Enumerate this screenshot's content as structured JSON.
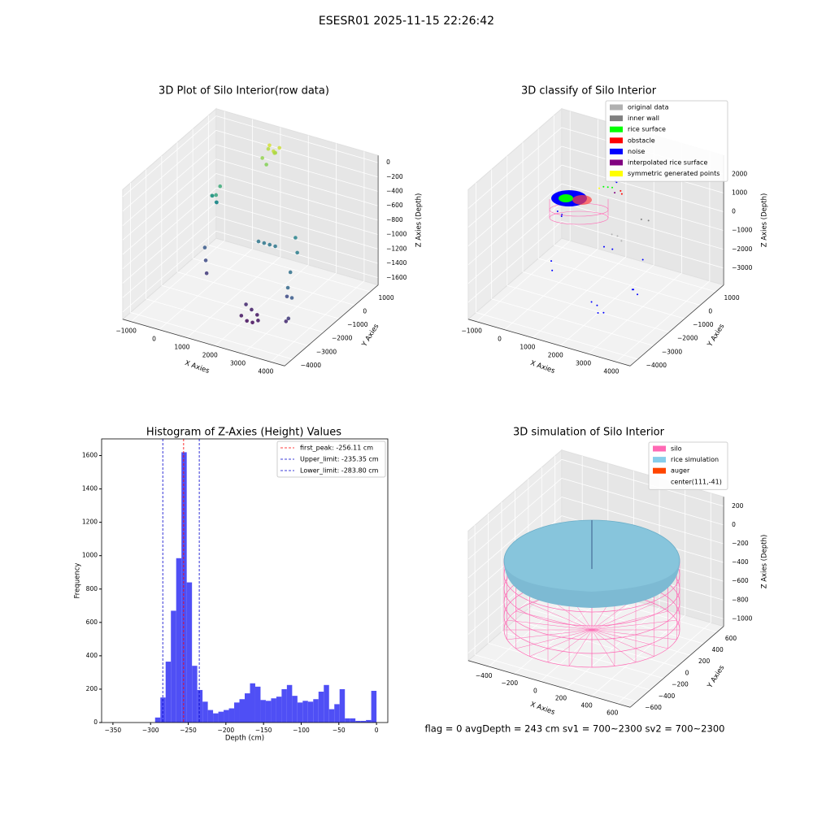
{
  "suptitle": "ESESR01 2025-11-15 22:26:42",
  "footer": "flag = 0     avgDepth = 243 cm  sv1 = 700~2300  sv2 = 700~2300",
  "chart_data": [
    {
      "type": "scatter3d",
      "title": "3D Plot of Silo Interior(row data)",
      "xlabel": "X Axies",
      "ylabel": "Y Axies",
      "zlabel": "Z Axies (Depth)",
      "xlim": [
        -1300,
        4500
      ],
      "ylim": [
        -4500,
        1500
      ],
      "zlim": [
        -1700,
        100
      ],
      "xticks": [
        {
          "value": -1000,
          "label": "−1000"
        },
        0,
        1000,
        2000,
        3000,
        4000
      ],
      "yticks": [
        {
          "value": -4000,
          "label": "−4000"
        },
        {
          "value": -3000,
          "label": "−3000"
        },
        {
          "value": -2000,
          "label": "−2000"
        },
        {
          "value": -1000,
          "label": "−1000"
        },
        0,
        1000
      ],
      "zticks": [
        {
          "value": -1600,
          "label": "−1600"
        },
        {
          "value": -1400,
          "label": "−1400"
        },
        {
          "value": -1200,
          "label": "−1200"
        },
        {
          "value": -1000,
          "label": "−1000"
        },
        {
          "value": -800,
          "label": "−800"
        },
        {
          "value": -600,
          "label": "−600"
        },
        {
          "value": -400,
          "label": "−400"
        },
        {
          "value": -200,
          "label": "−200"
        },
        0
      ],
      "colormap": "viridis",
      "points": [
        [
          1000,
          800,
          -20
        ],
        [
          1200,
          700,
          -60
        ],
        [
          900,
          900,
          -100
        ],
        [
          1100,
          1000,
          -150
        ],
        [
          1300,
          900,
          -40
        ],
        [
          800,
          700,
          -200
        ],
        [
          1000,
          600,
          -250
        ],
        [
          1150,
          850,
          -120
        ],
        [
          -500,
          -200,
          -700
        ],
        [
          -400,
          -100,
          -800
        ],
        [
          -600,
          0,
          -750
        ],
        [
          -300,
          -300,
          -650
        ],
        [
          -500,
          100,
          -850
        ],
        [
          -350,
          50,
          -600
        ],
        [
          1500,
          -800,
          -1000
        ],
        [
          1700,
          -800,
          -1000
        ],
        [
          1900,
          -800,
          -1000
        ],
        [
          2100,
          -800,
          -1000
        ],
        [
          3500,
          -2500,
          -1100
        ],
        [
          3700,
          -2600,
          -1200
        ],
        [
          3300,
          -2200,
          -1300
        ],
        [
          3800,
          -3000,
          -1400
        ],
        [
          3600,
          -2800,
          -1500
        ],
        [
          3200,
          -1800,
          -1050
        ],
        [
          2000,
          -2500,
          -1500
        ],
        [
          2200,
          -2500,
          -1550
        ],
        [
          2400,
          -2500,
          -1600
        ],
        [
          2000,
          -2800,
          -1600
        ],
        [
          2200,
          -2800,
          -1650
        ],
        [
          2400,
          -2800,
          -1650
        ],
        [
          2600,
          -2800,
          -1600
        ],
        [
          0,
          -1500,
          -1300
        ],
        [
          200,
          -1800,
          -1400
        ],
        [
          -200,
          -1200,
          -1200
        ],
        [
          2600,
          -400,
          -900
        ],
        [
          3000,
          -1000,
          -950
        ]
      ]
    },
    {
      "type": "scatter3d",
      "title": "3D classify of Silo Interior",
      "xlabel": "X Axies",
      "ylabel": "Y Axies",
      "zlabel": "Z Axies (Depth)",
      "xlim": [
        -1300,
        4500
      ],
      "ylim": [
        -4500,
        1500
      ],
      "zlim": [
        -3900,
        3000
      ],
      "xticks": [
        {
          "value": -1000,
          "label": "−1000"
        },
        0,
        1000,
        2000,
        3000,
        4000
      ],
      "yticks": [
        {
          "value": -4000,
          "label": "−4000"
        },
        {
          "value": -3000,
          "label": "−3000"
        },
        {
          "value": -2000,
          "label": "−2000"
        },
        {
          "value": -1000,
          "label": "−1000"
        },
        0,
        1000
      ],
      "zticks": [
        {
          "value": -3000,
          "label": "−3000"
        },
        {
          "value": -2000,
          "label": "−2000"
        },
        {
          "value": -1000,
          "label": "−1000"
        },
        0,
        1000,
        2000
      ],
      "series": [
        {
          "name": "original data",
          "color": "#b0b0b0",
          "points": [
            [
              1500,
              -300,
              -1200
            ],
            [
              1700,
              -300,
              -1200
            ],
            [
              1900,
              -400,
              -1300
            ]
          ]
        },
        {
          "name": "inner wall",
          "color": "#808080",
          "points": [
            [
              2000,
              700,
              -900
            ],
            [
              2200,
              800,
              -950
            ]
          ]
        },
        {
          "name": "rice surface",
          "color": "#00ff00",
          "points": [
            [
              800,
              700,
              300
            ],
            [
              900,
              800,
              250
            ],
            [
              700,
              600,
              350
            ]
          ]
        },
        {
          "name": "obstacle",
          "color": "#ff0000",
          "points": [
            [
              1200,
              800,
              200
            ],
            [
              1300,
              700,
              150
            ]
          ]
        },
        {
          "name": "noise",
          "color": "#0000ff",
          "points": [
            [
              1000,
              900,
              500
            ],
            [
              900,
              1000,
              450
            ],
            [
              -500,
              -200,
              -900
            ],
            [
              -400,
              -100,
              -1100
            ],
            [
              -300,
              -300,
              -1000
            ],
            [
              1500,
              -800,
              -1500
            ],
            [
              1800,
              -800,
              -1500
            ],
            [
              3500,
              -2500,
              -1700
            ],
            [
              3700,
              -2600,
              -1800
            ],
            [
              3300,
              -2200,
              -2000
            ],
            [
              2000,
              -2500,
              -3000
            ],
            [
              2200,
              -2500,
              -3100
            ],
            [
              2400,
              -2800,
              -3200
            ],
            [
              2600,
              -2800,
              -3100
            ],
            [
              0,
              -1500,
              -2400
            ],
            [
              200,
              -1800,
              -2600
            ],
            [
              3000,
              -1000,
              -1400
            ]
          ]
        },
        {
          "name": "interpolated rice surface",
          "color": "#800080",
          "points": [
            [
              1100,
              600,
              200
            ]
          ]
        },
        {
          "name": "symmetric generated points",
          "color": "#ffff00",
          "points": [
            [
              600,
              500,
              300
            ]
          ]
        }
      ]
    },
    {
      "type": "histogram",
      "title": "Histogram of Z-Axies (Height) Values",
      "xlabel": "Depth (cm)",
      "ylabel": "Frequency",
      "color": "#4f4ff5",
      "xlim": [
        -365,
        15
      ],
      "ylim": [
        0,
        1700
      ],
      "xticks": [
        {
          "value": -350,
          "label": "−350"
        },
        {
          "value": -300,
          "label": "−300"
        },
        {
          "value": -250,
          "label": "−250"
        },
        {
          "value": -200,
          "label": "−200"
        },
        {
          "value": -150,
          "label": "−150"
        },
        {
          "value": -100,
          "label": "−100"
        },
        {
          "value": -50,
          "label": "−50"
        },
        0
      ],
      "yticks": [
        0,
        200,
        400,
        600,
        800,
        1000,
        1200,
        1400,
        1600
      ],
      "bins": [
        -294,
        -287,
        -280,
        -273,
        -266,
        -259,
        -252,
        -245,
        -238,
        -231,
        -224,
        -217,
        -210,
        -203,
        -196,
        -189,
        -182,
        -175,
        -168,
        -161,
        -154,
        -147,
        -140,
        -133,
        -126,
        -119,
        -112,
        -105,
        -98,
        -91,
        -84,
        -77,
        -70,
        -63,
        -56,
        -49,
        -42,
        -35,
        -28,
        -21,
        -14,
        -7,
        0
      ],
      "values": [
        30,
        150,
        365,
        670,
        985,
        1620,
        840,
        340,
        195,
        125,
        75,
        55,
        65,
        75,
        85,
        120,
        140,
        175,
        235,
        215,
        135,
        130,
        145,
        155,
        200,
        225,
        160,
        120,
        130,
        125,
        140,
        185,
        225,
        80,
        110,
        200,
        25,
        25,
        10,
        10,
        15,
        190
      ],
      "lines": [
        {
          "name": "first_peak: -256.11 cm",
          "value": -256.11,
          "color": "#ff0000"
        },
        {
          "name": "Upper_limit: -235.35 cm",
          "value": -235.35,
          "color": "#0000cc"
        },
        {
          "name": "Lower_limit: -283.80 cm",
          "value": -283.8,
          "color": "#0000cc"
        }
      ]
    },
    {
      "type": "surface3d",
      "title": "3D simulation of Silo Interior",
      "xlabel": "X Axies",
      "ylabel": "Y Axies",
      "zlabel": "Z Axies (Depth)",
      "xlim": [
        -560,
        700
      ],
      "ylim": [
        -700,
        700
      ],
      "zlim": [
        -1080,
        300
      ],
      "xticks": [
        {
          "value": -400,
          "label": "−400"
        },
        {
          "value": -200,
          "label": "−200"
        },
        0,
        200,
        400,
        600
      ],
      "yticks": [
        {
          "value": -600,
          "label": "−600"
        },
        {
          "value": -400,
          "label": "−400"
        },
        {
          "value": -200,
          "label": "−200"
        },
        0,
        200,
        400,
        600
      ],
      "zticks": [
        {
          "value": -1000,
          "label": "−1000"
        },
        {
          "value": -800,
          "label": "−800"
        },
        {
          "value": -600,
          "label": "−600"
        },
        {
          "value": -400,
          "label": "−400"
        },
        {
          "value": -200,
          "label": "−200"
        },
        0,
        200
      ],
      "series": [
        {
          "name": "silo",
          "color": "#ff69b4"
        },
        {
          "name": "rice simulation",
          "color": "#87ceeb"
        },
        {
          "name": "auger",
          "color": "#ff4500"
        },
        {
          "name": "center(111,-41)"
        }
      ]
    }
  ]
}
